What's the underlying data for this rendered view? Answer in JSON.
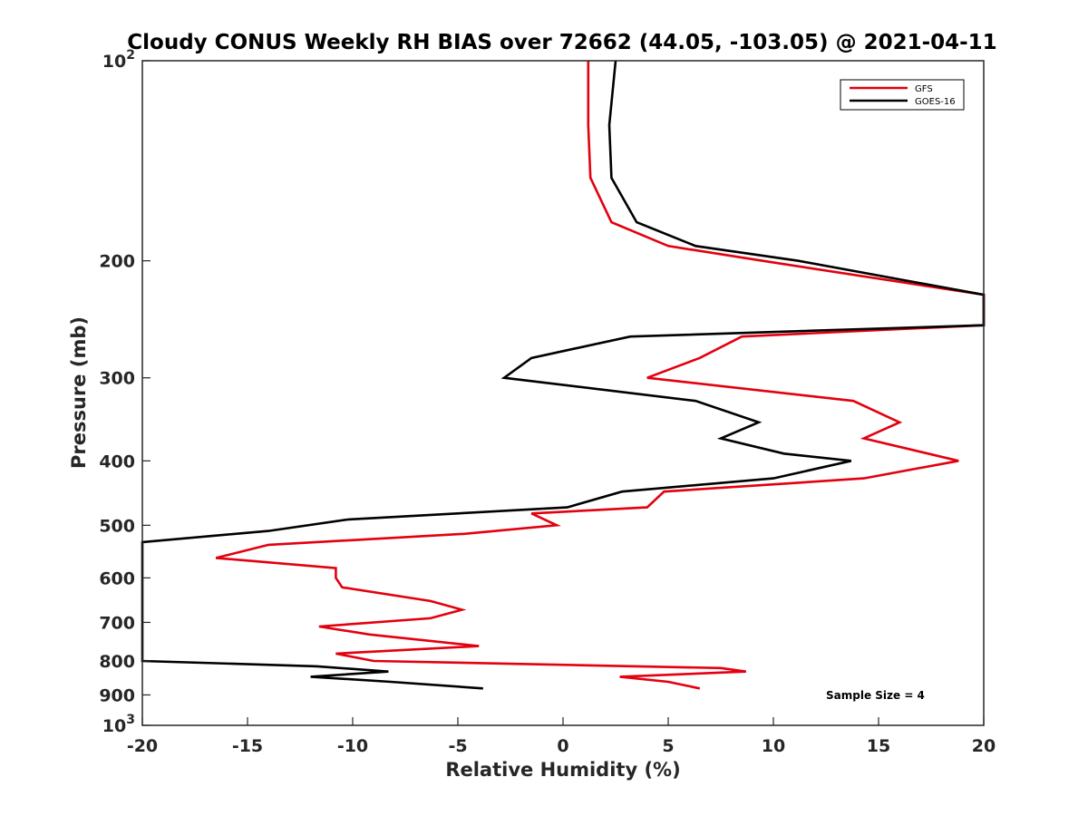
{
  "chart_data": {
    "type": "line",
    "title": "Cloudy CONUS Weekly RH BIAS over 72662 (44.05, -103.05) @ 2021-04-11",
    "xlabel": "Relative Humidity (%)",
    "ylabel": "Pressure (mb)",
    "xlim": [
      -20,
      20
    ],
    "ylim": [
      100,
      1000
    ],
    "y_scale": "log",
    "y_reversed": true,
    "grid": false,
    "legend_position": "top-right",
    "annotation": "Sample Size = 4",
    "x_ticks": [
      "-20",
      "-15",
      "-10",
      "-5",
      "0",
      "5",
      "10",
      "15",
      "20"
    ],
    "x_tick_values": [
      -20,
      -15,
      -10,
      -5,
      0,
      5,
      10,
      15,
      20
    ],
    "y_ticks": [
      {
        "value": 100,
        "base": "10",
        "exp": "2"
      },
      {
        "value": 200,
        "label": "200"
      },
      {
        "value": 300,
        "label": "300"
      },
      {
        "value": 400,
        "label": "400"
      },
      {
        "value": 500,
        "label": "500"
      },
      {
        "value": 600,
        "label": "600"
      },
      {
        "value": 700,
        "label": "700"
      },
      {
        "value": 800,
        "label": "800"
      },
      {
        "value": 900,
        "label": "900"
      },
      {
        "value": 1000,
        "base": "10",
        "exp": "3"
      }
    ],
    "series": [
      {
        "name": "GFS",
        "color": "#e3000f",
        "points": [
          [
            1.2,
            100
          ],
          [
            1.2,
            125
          ],
          [
            1.3,
            150
          ],
          [
            2.3,
            175
          ],
          [
            5.0,
            190
          ],
          [
            9.5,
            200
          ],
          [
            20.0,
            225
          ],
          [
            20.0,
            250
          ],
          [
            8.5,
            260
          ],
          [
            6.5,
            280
          ],
          [
            4.0,
            300
          ],
          [
            13.8,
            325
          ],
          [
            16.0,
            350
          ],
          [
            14.3,
            370
          ],
          [
            18.8,
            400
          ],
          [
            14.3,
            425
          ],
          [
            4.8,
            445
          ],
          [
            4.0,
            470
          ],
          [
            -1.5,
            480
          ],
          [
            -0.3,
            500
          ],
          [
            -4.7,
            515
          ],
          [
            -14.0,
            535
          ],
          [
            -16.5,
            560
          ],
          [
            -10.8,
            580
          ],
          [
            -10.8,
            600
          ],
          [
            -10.5,
            620
          ],
          [
            -6.3,
            650
          ],
          [
            -4.8,
            670
          ],
          [
            -6.3,
            690
          ],
          [
            -11.6,
            710
          ],
          [
            -9.2,
            730
          ],
          [
            -4.0,
            760
          ],
          [
            -10.8,
            780
          ],
          [
            -9.0,
            800
          ],
          [
            7.5,
            820
          ],
          [
            8.7,
            830
          ],
          [
            2.7,
            845
          ],
          [
            5.0,
            860
          ],
          [
            6.5,
            880
          ]
        ]
      },
      {
        "name": "GOES-16",
        "color": "#000000",
        "points": [
          [
            2.5,
            100
          ],
          [
            2.2,
            125
          ],
          [
            2.3,
            150
          ],
          [
            3.5,
            175
          ],
          [
            6.3,
            190
          ],
          [
            11.2,
            200
          ],
          [
            20.0,
            225
          ],
          [
            20.0,
            250
          ],
          [
            3.2,
            260
          ],
          [
            -1.5,
            280
          ],
          [
            -2.8,
            300
          ],
          [
            6.3,
            325
          ],
          [
            9.3,
            350
          ],
          [
            7.5,
            370
          ],
          [
            10.5,
            390
          ],
          [
            13.7,
            400
          ],
          [
            10.0,
            425
          ],
          [
            2.8,
            445
          ],
          [
            0.2,
            470
          ],
          [
            -10.2,
            490
          ],
          [
            -14.0,
            510
          ],
          [
            -20.0,
            530
          ],
          [
            -20.0,
            800
          ],
          [
            -11.7,
            815
          ],
          [
            -8.3,
            830
          ],
          [
            -12.0,
            845
          ],
          [
            -8.2,
            860
          ],
          [
            -3.8,
            880
          ]
        ]
      }
    ]
  }
}
